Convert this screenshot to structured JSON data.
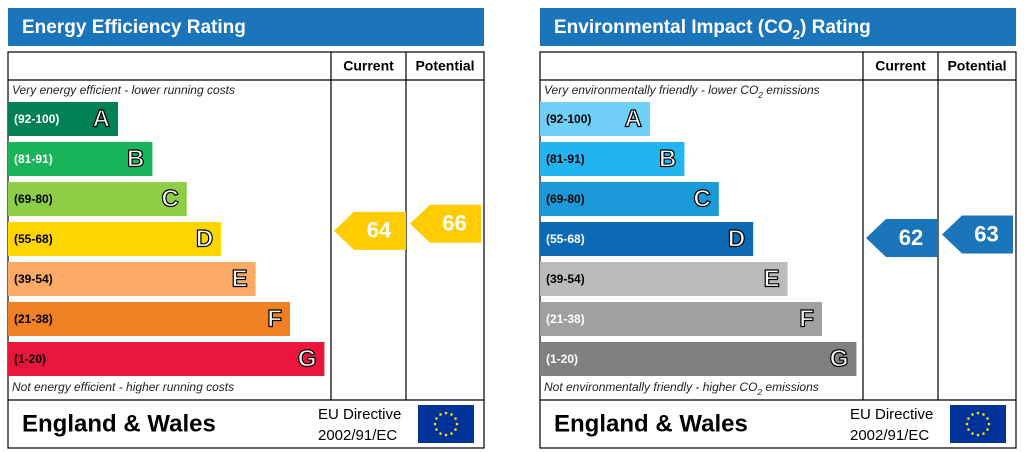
{
  "panels": [
    {
      "title": [
        "Energy Efficiency Rating"
      ],
      "col_current": "Current",
      "col_potential": "Potential",
      "top_note": [
        "Very energy efficient - lower running costs"
      ],
      "bottom_note": [
        "Not energy efficient - higher running costs"
      ],
      "bands": [
        {
          "range": "(92-100)",
          "letter": "A",
          "color": "#008054",
          "text_color": "#ffffff"
        },
        {
          "range": "(81-91)",
          "letter": "B",
          "color": "#19b459",
          "text_color": "#ffffff"
        },
        {
          "range": "(69-80)",
          "letter": "C",
          "color": "#8dce46",
          "text_color": "#000000"
        },
        {
          "range": "(55-68)",
          "letter": "D",
          "color": "#ffd500",
          "text_color": "#000000"
        },
        {
          "range": "(39-54)",
          "letter": "E",
          "color": "#fcaa65",
          "text_color": "#000000"
        },
        {
          "range": "(21-38)",
          "letter": "F",
          "color": "#ef8023",
          "text_color": "#000000"
        },
        {
          "range": "(1-20)",
          "letter": "G",
          "color": "#e9153b",
          "text_color": "#000000"
        }
      ],
      "current": 64,
      "potential": 66,
      "arrow_color": "#ffcc00",
      "region": "England & Wales",
      "directive": [
        "EU Directive",
        "2002/91/EC"
      ]
    },
    {
      "title": [
        "Environmental Impact (CO",
        "2",
        ") Rating"
      ],
      "col_current": "Current",
      "col_potential": "Potential",
      "top_note": [
        "Very environmentally friendly - lower CO",
        "2",
        " emissions"
      ],
      "bottom_note": [
        "Not environmentally friendly - higher CO",
        "2",
        " emissions"
      ],
      "bands": [
        {
          "range": "(92-100)",
          "letter": "A",
          "color": "#6fcff7",
          "text_color": "#000000"
        },
        {
          "range": "(81-91)",
          "letter": "B",
          "color": "#22b4ee",
          "text_color": "#000000"
        },
        {
          "range": "(69-80)",
          "letter": "C",
          "color": "#1a9ad6",
          "text_color": "#000000"
        },
        {
          "range": "(55-68)",
          "letter": "D",
          "color": "#0c6ab5",
          "text_color": "#ffffff"
        },
        {
          "range": "(39-54)",
          "letter": "E",
          "color": "#bbbbbb",
          "text_color": "#000000"
        },
        {
          "range": "(21-38)",
          "letter": "F",
          "color": "#a0a0a0",
          "text_color": "#ffffff"
        },
        {
          "range": "(1-20)",
          "letter": "G",
          "color": "#808080",
          "text_color": "#ffffff"
        }
      ],
      "current": 62,
      "potential": 63,
      "arrow_color": "#1b75bb",
      "region": "England & Wales",
      "directive": [
        "EU Directive",
        "2002/91/EC"
      ]
    }
  ]
}
